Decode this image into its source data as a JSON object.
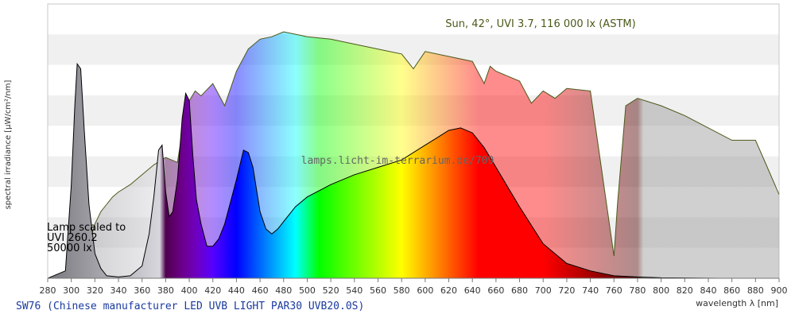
{
  "caption": "SW76 (Chinese manufacturer LED UVB LIGHT PAR30 UVB20.0S)",
  "watermark": "lamps.licht-im-terrarium.de/709",
  "sun_label": "Sun, 42°, UVI 3.7, 116 000 lx (ASTM)",
  "lamp_note": [
    "Lamp scaled to",
    "UVI 260.2",
    "50000 lx"
  ],
  "colors": {
    "sun_stroke": "#4b5a1a",
    "lamp_stroke": "#000000",
    "band": "#f0f0f0"
  },
  "chart_data": {
    "type": "area",
    "xlabel": "wavelength λ [nm]",
    "ylabel": "spectral irradiance [µW/cm²/nm]",
    "xlim": [
      280,
      900
    ],
    "ylim": [
      0,
      1
    ],
    "x_ticks": [
      280,
      300,
      320,
      340,
      360,
      380,
      400,
      420,
      440,
      460,
      480,
      500,
      520,
      540,
      560,
      580,
      600,
      620,
      640,
      660,
      680,
      700,
      720,
      740,
      760,
      780,
      800,
      820,
      840,
      860,
      880,
      900
    ],
    "y_ticks": [],
    "grid": "horizontal bands",
    "series": [
      {
        "name": "Sun, 42°, UVI 3.7, 116 000 lx (ASTM)",
        "x": [
          295,
          300,
          305,
          310,
          315,
          320,
          325,
          330,
          335,
          340,
          350,
          360,
          370,
          380,
          390,
          395,
          400,
          405,
          410,
          420,
          430,
          440,
          450,
          460,
          470,
          480,
          490,
          500,
          520,
          540,
          560,
          580,
          590,
          600,
          620,
          640,
          650,
          655,
          660,
          680,
          690,
          700,
          710,
          720,
          740,
          760,
          763,
          770,
          780,
          800,
          820,
          840,
          860,
          880,
          890,
          900
        ],
        "y": [
          0.0,
          0.01,
          0.04,
          0.08,
          0.14,
          0.22,
          0.27,
          0.3,
          0.33,
          0.35,
          0.38,
          0.42,
          0.46,
          0.49,
          0.47,
          0.62,
          0.72,
          0.76,
          0.74,
          0.79,
          0.7,
          0.84,
          0.93,
          0.97,
          0.98,
          1.0,
          0.99,
          0.98,
          0.97,
          0.95,
          0.93,
          0.91,
          0.85,
          0.92,
          0.9,
          0.88,
          0.79,
          0.86,
          0.84,
          0.8,
          0.71,
          0.76,
          0.73,
          0.77,
          0.76,
          0.09,
          0.3,
          0.7,
          0.73,
          0.7,
          0.66,
          0.61,
          0.56,
          0.56,
          0.45,
          0.34
        ]
      },
      {
        "name": "SW76",
        "x": [
          280,
          295,
          300,
          303,
          305,
          308,
          311,
          315,
          320,
          325,
          330,
          340,
          350,
          360,
          366,
          370,
          374,
          377,
          380,
          383,
          386,
          390,
          394,
          397,
          400,
          403,
          406,
          410,
          415,
          420,
          425,
          430,
          440,
          446,
          450,
          454,
          460,
          465,
          470,
          475,
          480,
          490,
          500,
          520,
          540,
          560,
          580,
          600,
          610,
          620,
          630,
          640,
          650,
          660,
          680,
          700,
          720,
          740,
          760,
          780,
          800,
          850,
          900
        ],
        "y": [
          0.0,
          0.03,
          0.38,
          0.7,
          0.87,
          0.85,
          0.6,
          0.3,
          0.1,
          0.04,
          0.01,
          0.005,
          0.01,
          0.05,
          0.18,
          0.33,
          0.52,
          0.54,
          0.35,
          0.25,
          0.27,
          0.4,
          0.65,
          0.75,
          0.72,
          0.5,
          0.32,
          0.22,
          0.13,
          0.13,
          0.16,
          0.22,
          0.4,
          0.52,
          0.51,
          0.45,
          0.27,
          0.2,
          0.18,
          0.2,
          0.23,
          0.29,
          0.33,
          0.38,
          0.42,
          0.45,
          0.48,
          0.54,
          0.57,
          0.6,
          0.61,
          0.59,
          0.53,
          0.45,
          0.29,
          0.14,
          0.06,
          0.03,
          0.01,
          0.005,
          0.002,
          0.0,
          0.0
        ]
      }
    ]
  }
}
